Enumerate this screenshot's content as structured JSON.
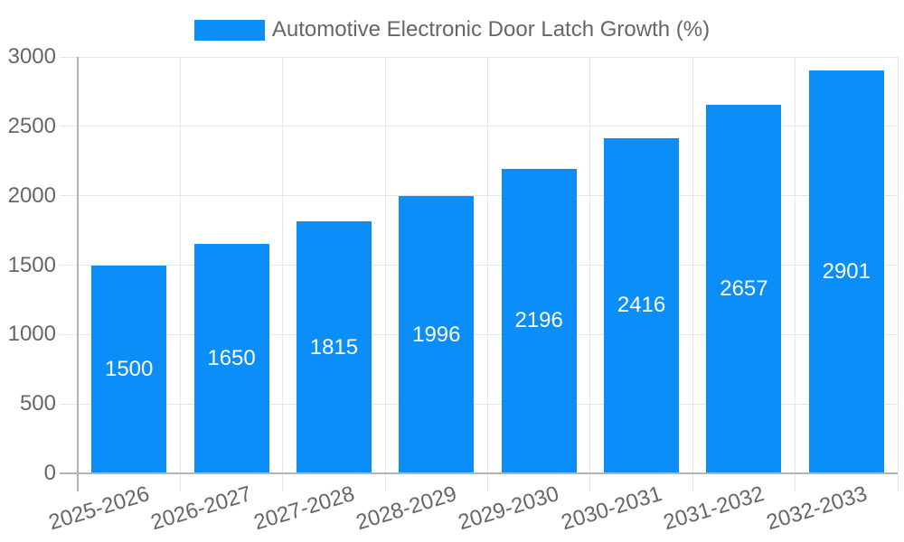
{
  "chart_data": {
    "type": "bar",
    "title": "Automotive Electronic Door Latch Growth (%)",
    "categories": [
      "2025-2026",
      "2026-2027",
      "2027-2028",
      "2028-2029",
      "2029-2030",
      "2030-2031",
      "2031-2032",
      "2032-2033"
    ],
    "values": [
      1500,
      1650,
      1815,
      1996,
      2196,
      2416,
      2657,
      2901
    ],
    "series": [
      {
        "name": "Automotive Electronic Door Latch Growth (%)",
        "values": [
          1500,
          1650,
          1815,
          1996,
          2196,
          2416,
          2657,
          2901
        ]
      }
    ],
    "xlabel": "",
    "ylabel": "",
    "ylim": [
      0,
      3000
    ],
    "ytick_interval": 500,
    "ytick_labels": [
      "0",
      "500",
      "1000",
      "1500",
      "2000",
      "2500",
      "3000"
    ],
    "grid": true,
    "legend_position": "top",
    "bar_value_labels_shown": true,
    "colors": {
      "bar": "#0c8ef8",
      "bar_label": "#ffffff",
      "axis_text": "#666666",
      "grid_line": "#e6e6e6",
      "axis_line": "#b3b3b3",
      "background": "#ffffff"
    }
  }
}
